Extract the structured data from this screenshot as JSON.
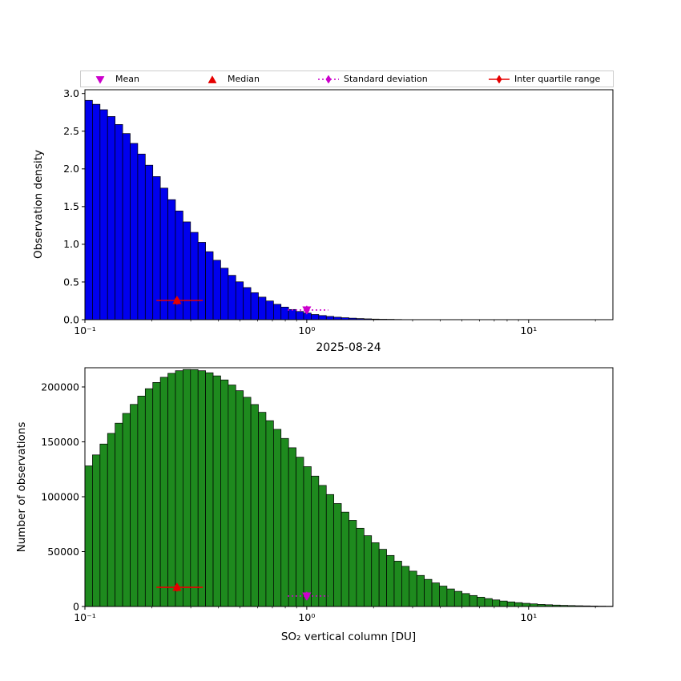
{
  "colors": {
    "hist_top": "#0000ee",
    "hist_bottom": "#1e8a1e",
    "median_iqr": "#e60000",
    "mean_std": "#cc00cc",
    "axes": "#000000",
    "legend_border": "#cccccc"
  },
  "legend": {
    "position": "top",
    "items": [
      {
        "label": "Mean",
        "marker": "triangle-down",
        "color_key": "mean_std"
      },
      {
        "label": "Median",
        "marker": "triangle-up",
        "color_key": "median_iqr"
      },
      {
        "label": "Standard deviation",
        "marker": "diamond-dotted",
        "color_key": "mean_std"
      },
      {
        "label": "Inter quartile range",
        "marker": "diamond-line",
        "color_key": "median_iqr"
      }
    ]
  },
  "chart_data": [
    {
      "type": "bar",
      "subtype": "log-x histogram",
      "panel": "top",
      "ylabel": "Observation density",
      "bar_color_key": "hist_top",
      "xlim_log10": [
        -1,
        1.38
      ],
      "ylim": [
        0,
        3.05
      ],
      "bins": {
        "start": -1,
        "end": 1.38,
        "count": 70
      },
      "values": [
        2.909,
        2.857,
        2.785,
        2.695,
        2.589,
        2.469,
        2.338,
        2.197,
        2.049,
        1.898,
        1.745,
        1.592,
        1.442,
        1.297,
        1.158,
        1.026,
        0.902,
        0.788,
        0.683,
        0.588,
        0.502,
        0.426,
        0.358,
        0.299,
        0.248,
        0.204,
        0.167,
        0.135,
        0.109,
        0.087,
        0.069,
        0.055,
        0.043,
        0.033,
        0.026,
        0.02,
        0.015,
        0.011,
        0.008,
        0.006,
        0.005,
        0.003,
        0.002,
        0.002,
        0.001,
        0.001,
        0.001,
        0,
        0,
        0,
        0,
        0,
        0,
        0,
        0,
        0,
        0,
        0,
        0,
        0,
        0,
        0,
        0,
        0,
        0,
        0,
        0,
        0,
        0,
        0
      ],
      "yticks": [
        {
          "v": 0.0,
          "label": "0.0"
        },
        {
          "v": 0.5,
          "label": "0.5"
        },
        {
          "v": 1.0,
          "label": "1.0"
        },
        {
          "v": 1.5,
          "label": "1.5"
        },
        {
          "v": 2.0,
          "label": "2.0"
        },
        {
          "v": 2.5,
          "label": "2.5"
        },
        {
          "v": 3.0,
          "label": "3.0"
        }
      ],
      "xticks": [
        {
          "v": 0.1,
          "label": "10⁻¹"
        },
        {
          "v": 1,
          "label": "10⁰"
        },
        {
          "v": 10,
          "label": "10¹"
        }
      ],
      "markers": {
        "median": {
          "x": 0.26,
          "y": 0.255
        },
        "mean": {
          "x": 1.0,
          "y": 0.128
        },
        "iqr_range": [
          0.21,
          0.34
        ],
        "std_range": [
          0.82,
          1.25
        ]
      }
    },
    {
      "type": "bar",
      "subtype": "log-x histogram",
      "panel": "bottom",
      "title": "2025-08-24",
      "ylabel": "Number of observations",
      "xlabel": "SO₂ vertical column [DU]",
      "bar_color_key": "hist_bottom",
      "xlim_log10": [
        -1,
        1.38
      ],
      "ylim": [
        0,
        217500
      ],
      "bins": {
        "start": -1,
        "end": 1.38,
        "count": 70
      },
      "values": [
        128100,
        138100,
        148000,
        157700,
        167000,
        175900,
        184100,
        191700,
        198400,
        204100,
        208800,
        212400,
        214800,
        215900,
        215800,
        214800,
        212900,
        210100,
        206400,
        201800,
        196600,
        190600,
        184000,
        176900,
        169300,
        161400,
        153100,
        144600,
        136000,
        127400,
        118800,
        110300,
        102000,
        93800,
        86000,
        78500,
        71300,
        64500,
        58100,
        52100,
        46500,
        41300,
        36600,
        32200,
        28300,
        24700,
        21500,
        18600,
        16000,
        13800,
        11800,
        10000,
        8500,
        7200,
        6000,
        5000,
        4200,
        3500,
        2900,
        2400,
        1900,
        1600,
        1300,
        1050,
        860,
        690,
        560,
        450,
        360,
        290
      ],
      "yticks": [
        {
          "v": 0,
          "label": "0"
        },
        {
          "v": 50000,
          "label": "50000"
        },
        {
          "v": 100000,
          "label": "100000"
        },
        {
          "v": 150000,
          "label": "150000"
        },
        {
          "v": 200000,
          "label": "200000"
        }
      ],
      "xticks": [
        {
          "v": 0.1,
          "label": "10⁻¹"
        },
        {
          "v": 1,
          "label": "10⁰"
        },
        {
          "v": 10,
          "label": "10¹"
        }
      ],
      "markers": {
        "median": {
          "x": 0.26,
          "y": 17500
        },
        "mean": {
          "x": 1.0,
          "y": 9500
        },
        "iqr_range": [
          0.21,
          0.34
        ],
        "std_range": [
          0.82,
          1.25
        ]
      }
    }
  ]
}
